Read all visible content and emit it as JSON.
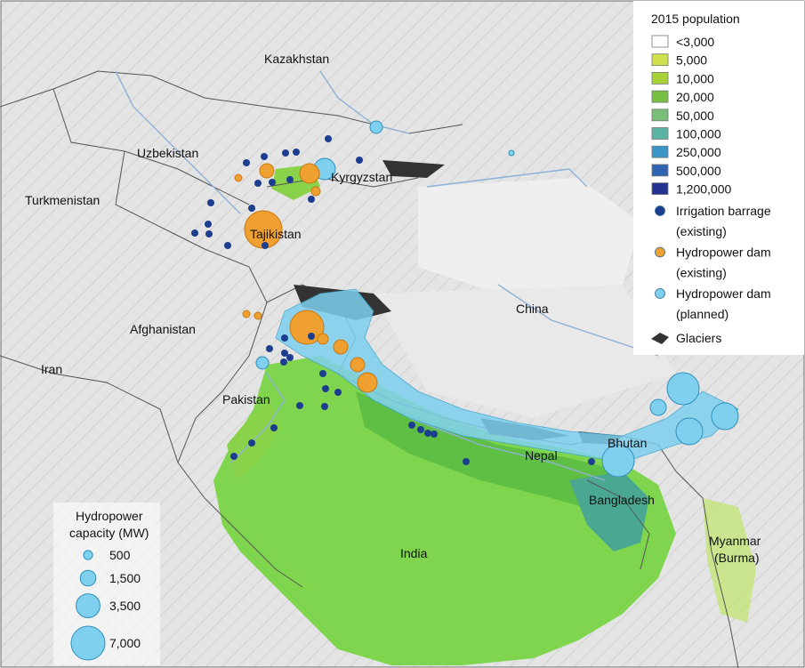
{
  "map": {
    "country_labels": [
      "Kazakhstan",
      "Uzbekistan",
      "Kyrgyzstan",
      "Turkmenistan",
      "Tajikistan",
      "China",
      "Afghanistan",
      "Iran",
      "Pakistan",
      "Nepal",
      "Bhutan",
      "Bangladesh",
      "India",
      "Myanmar",
      "(Burma)"
    ]
  },
  "legend": {
    "title": "2015 population",
    "population_classes": [
      {
        "label": "<3,000",
        "color": "#ffffff"
      },
      {
        "label": "5,000",
        "color": "#cfe04a"
      },
      {
        "label": "10,000",
        "color": "#a8d13a"
      },
      {
        "label": "20,000",
        "color": "#76c043"
      },
      {
        "label": "50,000",
        "color": "#78c07a"
      },
      {
        "label": "100,000",
        "color": "#5ab3a4"
      },
      {
        "label": "250,000",
        "color": "#3a96c8"
      },
      {
        "label": "500,000",
        "color": "#2f64b0"
      },
      {
        "label": "1,200,000",
        "color": "#23338f"
      }
    ],
    "point_types": [
      {
        "line1": "Irrigation barrage",
        "line2": "(existing)",
        "color": "#1d3d8f"
      },
      {
        "line1": "Hydropower dam",
        "line2": "(existing)",
        "color": "#f0a030"
      },
      {
        "line1": "Hydropower dam",
        "line2": "(planned)",
        "color": "#7fd0ef"
      }
    ],
    "glaciers_label": "Glaciers"
  },
  "capacity_legend": {
    "title_line1": "Hydropower",
    "title_line2": "capacity (MW)",
    "items": [
      {
        "label": "500",
        "mw": 500
      },
      {
        "label": "1,500",
        "mw": 1500
      },
      {
        "label": "3,500",
        "mw": 3500
      },
      {
        "label": "7,000",
        "mw": 7000
      }
    ]
  }
}
